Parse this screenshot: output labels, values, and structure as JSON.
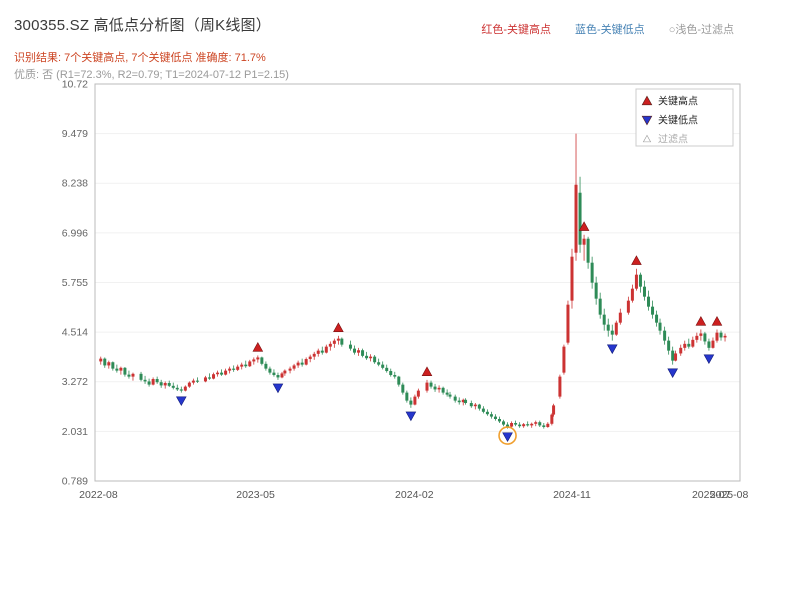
{
  "header": {
    "title": "300355.SZ 高低点分析图（周K线图）",
    "legend_high": "红色-关键高点",
    "legend_low": "蓝色-关键低点",
    "legend_filter": "○浅色-过滤点",
    "result_line": "识别结果: 7个关键高点, 7个关键低点   准确度: 71.7%",
    "quality_line": "优质: 否 (R1=72.3%, R2=0.79; T1=2024-07-12 P1=2.15)"
  },
  "colors": {
    "title": "#3a3a3a",
    "legend_high_text": "#cc3333",
    "legend_low_text": "#4682b4",
    "legend_filter_text": "#999999",
    "result_text": "#cc4422",
    "quality_text": "#9a9a9a",
    "up_candle": "#cc3333",
    "down_candle": "#2e8b57",
    "key_high_marker": "#cc2020",
    "key_low_marker": "#2636cc",
    "highlight_circle": "#f0a030",
    "axis_text": "#666666",
    "plot_border": "#bbbbbb"
  },
  "chart_data": {
    "type": "candlestick",
    "title": "300355.SZ 高低点分析图（周K线图）",
    "ylim": [
      0.789,
      10.72
    ],
    "yticks": [
      "10.72",
      "9.479",
      "8.238",
      "6.996",
      "5.755",
      "4.514",
      "3.272",
      "2.031",
      "0.789"
    ],
    "xlim": [
      "2022-07-26",
      "2025-08-20"
    ],
    "xticks": [
      {
        "date": "2022-08-01",
        "label": "2022-08"
      },
      {
        "date": "2023-05-01",
        "label": "2023-05"
      },
      {
        "date": "2024-02-01",
        "label": "2024-02"
      },
      {
        "date": "2024-11-01",
        "label": "2024-11"
      },
      {
        "date": "2025-07-01",
        "label": "2025-07"
      },
      {
        "date": "2025-08-01",
        "label": "2025-08"
      }
    ],
    "legend": [
      {
        "label": "关键高点",
        "shape": "triangle-up",
        "color": "#cc2020",
        "muted": false
      },
      {
        "label": "关键低点",
        "shape": "triangle-down",
        "color": "#2636cc",
        "muted": false
      },
      {
        "label": "过滤点",
        "shape": "triangle-up",
        "color": "#ffffff",
        "muted": true
      }
    ],
    "candles": [
      [
        "2022-08-05",
        3.78,
        3.9,
        3.7,
        3.85
      ],
      [
        "2022-08-12",
        3.85,
        3.88,
        3.62,
        3.68
      ],
      [
        "2022-08-19",
        3.68,
        3.8,
        3.6,
        3.76
      ],
      [
        "2022-08-26",
        3.76,
        3.78,
        3.55,
        3.6
      ],
      [
        "2022-09-02",
        3.6,
        3.7,
        3.5,
        3.55
      ],
      [
        "2022-09-09",
        3.55,
        3.65,
        3.45,
        3.62
      ],
      [
        "2022-09-16",
        3.62,
        3.64,
        3.4,
        3.45
      ],
      [
        "2022-09-23",
        3.45,
        3.55,
        3.35,
        3.4
      ],
      [
        "2022-09-30",
        3.4,
        3.5,
        3.3,
        3.47
      ],
      [
        "2022-10-14",
        3.47,
        3.52,
        3.28,
        3.32
      ],
      [
        "2022-10-21",
        3.32,
        3.42,
        3.22,
        3.28
      ],
      [
        "2022-10-28",
        3.28,
        3.35,
        3.15,
        3.2
      ],
      [
        "2022-11-04",
        3.2,
        3.38,
        3.18,
        3.34
      ],
      [
        "2022-11-11",
        3.34,
        3.4,
        3.22,
        3.26
      ],
      [
        "2022-11-18",
        3.26,
        3.32,
        3.12,
        3.18
      ],
      [
        "2022-11-25",
        3.18,
        3.28,
        3.1,
        3.24
      ],
      [
        "2022-12-02",
        3.24,
        3.3,
        3.14,
        3.17
      ],
      [
        "2022-12-09",
        3.17,
        3.25,
        3.08,
        3.12
      ],
      [
        "2022-12-16",
        3.12,
        3.2,
        3.04,
        3.08
      ],
      [
        "2022-12-23",
        3.08,
        3.15,
        3.0,
        3.05
      ],
      [
        "2022-12-30",
        3.05,
        3.18,
        3.03,
        3.15
      ],
      [
        "2023-01-06",
        3.15,
        3.28,
        3.12,
        3.25
      ],
      [
        "2023-01-13",
        3.25,
        3.35,
        3.2,
        3.3
      ],
      [
        "2023-01-20",
        3.3,
        3.38,
        3.24,
        3.28
      ],
      [
        "2023-02-03",
        3.28,
        3.42,
        3.26,
        3.38
      ],
      [
        "2023-02-10",
        3.38,
        3.48,
        3.32,
        3.35
      ],
      [
        "2023-02-17",
        3.35,
        3.5,
        3.33,
        3.46
      ],
      [
        "2023-02-24",
        3.46,
        3.55,
        3.4,
        3.5
      ],
      [
        "2023-03-03",
        3.5,
        3.58,
        3.42,
        3.45
      ],
      [
        "2023-03-10",
        3.45,
        3.6,
        3.43,
        3.55
      ],
      [
        "2023-03-17",
        3.55,
        3.65,
        3.48,
        3.6
      ],
      [
        "2023-03-24",
        3.6,
        3.68,
        3.52,
        3.57
      ],
      [
        "2023-03-31",
        3.57,
        3.7,
        3.54,
        3.65
      ],
      [
        "2023-04-07",
        3.65,
        3.75,
        3.58,
        3.7
      ],
      [
        "2023-04-14",
        3.7,
        3.8,
        3.62,
        3.66
      ],
      [
        "2023-04-21",
        3.66,
        3.82,
        3.64,
        3.78
      ],
      [
        "2023-04-28",
        3.78,
        3.88,
        3.7,
        3.83
      ],
      [
        "2023-05-05",
        3.83,
        3.93,
        3.75,
        3.88
      ],
      [
        "2023-05-12",
        3.88,
        3.9,
        3.68,
        3.72
      ],
      [
        "2023-05-19",
        3.72,
        3.78,
        3.55,
        3.6
      ],
      [
        "2023-05-26",
        3.6,
        3.65,
        3.45,
        3.5
      ],
      [
        "2023-06-02",
        3.5,
        3.58,
        3.4,
        3.44
      ],
      [
        "2023-06-09",
        3.44,
        3.5,
        3.32,
        3.38
      ],
      [
        "2023-06-16",
        3.38,
        3.52,
        3.36,
        3.48
      ],
      [
        "2023-06-21",
        3.48,
        3.58,
        3.42,
        3.55
      ],
      [
        "2023-06-30",
        3.55,
        3.65,
        3.48,
        3.6
      ],
      [
        "2023-07-07",
        3.6,
        3.72,
        3.55,
        3.68
      ],
      [
        "2023-07-14",
        3.68,
        3.8,
        3.62,
        3.75
      ],
      [
        "2023-07-21",
        3.75,
        3.85,
        3.65,
        3.7
      ],
      [
        "2023-07-28",
        3.7,
        3.88,
        3.68,
        3.84
      ],
      [
        "2023-08-04",
        3.84,
        3.95,
        3.76,
        3.9
      ],
      [
        "2023-08-11",
        3.9,
        4.02,
        3.82,
        3.97
      ],
      [
        "2023-08-18",
        3.97,
        4.1,
        3.9,
        4.05
      ],
      [
        "2023-08-25",
        4.05,
        4.15,
        3.95,
        4.0
      ],
      [
        "2023-09-01",
        4.0,
        4.2,
        3.98,
        4.15
      ],
      [
        "2023-09-08",
        4.15,
        4.28,
        4.05,
        4.22
      ],
      [
        "2023-09-15",
        4.22,
        4.35,
        4.12,
        4.3
      ],
      [
        "2023-09-22",
        4.3,
        4.42,
        4.2,
        4.35
      ],
      [
        "2023-09-28",
        4.35,
        4.38,
        4.15,
        4.2
      ],
      [
        "2023-10-13",
        4.2,
        4.3,
        4.05,
        4.1
      ],
      [
        "2023-10-20",
        4.1,
        4.18,
        3.95,
        4.0
      ],
      [
        "2023-10-27",
        4.0,
        4.12,
        3.92,
        4.06
      ],
      [
        "2023-11-03",
        4.06,
        4.1,
        3.88,
        3.92
      ],
      [
        "2023-11-10",
        3.92,
        4.02,
        3.82,
        3.86
      ],
      [
        "2023-11-17",
        3.86,
        3.96,
        3.78,
        3.9
      ],
      [
        "2023-11-24",
        3.9,
        3.94,
        3.72,
        3.76
      ],
      [
        "2023-12-01",
        3.76,
        3.85,
        3.66,
        3.7
      ],
      [
        "2023-12-08",
        3.7,
        3.78,
        3.58,
        3.62
      ],
      [
        "2023-12-15",
        3.62,
        3.7,
        3.5,
        3.54
      ],
      [
        "2023-12-22",
        3.54,
        3.6,
        3.4,
        3.44
      ],
      [
        "2023-12-29",
        3.44,
        3.52,
        3.35,
        3.4
      ],
      [
        "2024-01-05",
        3.4,
        3.42,
        3.15,
        3.2
      ],
      [
        "2024-01-12",
        3.2,
        3.25,
        2.95,
        3.0
      ],
      [
        "2024-01-19",
        3.0,
        3.05,
        2.75,
        2.8
      ],
      [
        "2024-01-26",
        2.8,
        2.88,
        2.62,
        2.7
      ],
      [
        "2024-02-02",
        2.7,
        2.95,
        2.68,
        2.9
      ],
      [
        "2024-02-08",
        2.9,
        3.1,
        2.85,
        3.05
      ],
      [
        "2024-02-23",
        3.05,
        3.32,
        3.0,
        3.25
      ],
      [
        "2024-03-01",
        3.25,
        3.3,
        3.1,
        3.15
      ],
      [
        "2024-03-08",
        3.15,
        3.22,
        3.02,
        3.08
      ],
      [
        "2024-03-15",
        3.08,
        3.18,
        3.0,
        3.12
      ],
      [
        "2024-03-22",
        3.12,
        3.15,
        2.95,
        3.0
      ],
      [
        "2024-03-29",
        3.0,
        3.08,
        2.9,
        2.95
      ],
      [
        "2024-04-03",
        2.95,
        3.02,
        2.85,
        2.9
      ],
      [
        "2024-04-12",
        2.9,
        2.95,
        2.75,
        2.8
      ],
      [
        "2024-04-19",
        2.8,
        2.88,
        2.7,
        2.76
      ],
      [
        "2024-04-26",
        2.76,
        2.85,
        2.68,
        2.82
      ],
      [
        "2024-04-30",
        2.82,
        2.86,
        2.7,
        2.74
      ],
      [
        "2024-05-10",
        2.74,
        2.8,
        2.62,
        2.66
      ],
      [
        "2024-05-17",
        2.66,
        2.74,
        2.58,
        2.7
      ],
      [
        "2024-05-24",
        2.7,
        2.72,
        2.55,
        2.6
      ],
      [
        "2024-05-31",
        2.6,
        2.66,
        2.48,
        2.52
      ],
      [
        "2024-06-07",
        2.52,
        2.58,
        2.42,
        2.46
      ],
      [
        "2024-06-14",
        2.46,
        2.52,
        2.35,
        2.4
      ],
      [
        "2024-06-21",
        2.4,
        2.46,
        2.3,
        2.34
      ],
      [
        "2024-06-28",
        2.34,
        2.4,
        2.24,
        2.28
      ],
      [
        "2024-07-05",
        2.28,
        2.32,
        2.16,
        2.2
      ],
      [
        "2024-07-12",
        2.2,
        2.26,
        2.1,
        2.15
      ],
      [
        "2024-07-19",
        2.15,
        2.28,
        2.13,
        2.24
      ],
      [
        "2024-07-26",
        2.24,
        2.3,
        2.16,
        2.2
      ],
      [
        "2024-08-02",
        2.2,
        2.26,
        2.12,
        2.16
      ],
      [
        "2024-08-09",
        2.16,
        2.24,
        2.12,
        2.21
      ],
      [
        "2024-08-16",
        2.21,
        2.28,
        2.15,
        2.18
      ],
      [
        "2024-08-23",
        2.18,
        2.25,
        2.12,
        2.22
      ],
      [
        "2024-08-30",
        2.22,
        2.3,
        2.16,
        2.26
      ],
      [
        "2024-09-06",
        2.26,
        2.3,
        2.14,
        2.18
      ],
      [
        "2024-09-13",
        2.18,
        2.24,
        2.1,
        2.14
      ],
      [
        "2024-09-20",
        2.14,
        2.26,
        2.12,
        2.22
      ],
      [
        "2024-09-27",
        2.22,
        2.48,
        2.18,
        2.45
      ],
      [
        "2024-09-30",
        2.45,
        2.72,
        2.4,
        2.68
      ],
      [
        "2024-10-11",
        2.9,
        3.45,
        2.85,
        3.4
      ],
      [
        "2024-10-18",
        3.5,
        4.2,
        3.45,
        4.15
      ],
      [
        "2024-10-25",
        4.25,
        5.3,
        4.2,
        5.2
      ],
      [
        "2024-11-01",
        5.3,
        6.6,
        5.1,
        6.4
      ],
      [
        "2024-11-08",
        6.5,
        9.48,
        6.3,
        8.2
      ],
      [
        "2024-11-15",
        8.0,
        8.4,
        6.5,
        6.7
      ],
      [
        "2024-11-22",
        6.7,
        6.95,
        6.3,
        6.85
      ],
      [
        "2024-11-29",
        6.85,
        6.9,
        6.1,
        6.25
      ],
      [
        "2024-12-06",
        6.25,
        6.4,
        5.6,
        5.75
      ],
      [
        "2024-12-13",
        5.75,
        5.9,
        5.2,
        5.35
      ],
      [
        "2024-12-20",
        5.35,
        5.5,
        4.85,
        4.95
      ],
      [
        "2024-12-27",
        4.95,
        5.1,
        4.55,
        4.7
      ],
      [
        "2025-01-03",
        4.7,
        4.85,
        4.4,
        4.55
      ],
      [
        "2025-01-10",
        4.55,
        4.7,
        4.3,
        4.45
      ],
      [
        "2025-01-17",
        4.45,
        4.8,
        4.42,
        4.75
      ],
      [
        "2025-01-24",
        4.75,
        5.1,
        4.7,
        5.0
      ],
      [
        "2025-02-07",
        5.0,
        5.4,
        4.95,
        5.3
      ],
      [
        "2025-02-14",
        5.3,
        5.7,
        5.25,
        5.6
      ],
      [
        "2025-02-21",
        5.6,
        6.1,
        5.55,
        5.95
      ],
      [
        "2025-02-28",
        5.95,
        6.0,
        5.5,
        5.65
      ],
      [
        "2025-03-07",
        5.65,
        5.8,
        5.3,
        5.4
      ],
      [
        "2025-03-14",
        5.4,
        5.55,
        5.05,
        5.15
      ],
      [
        "2025-03-21",
        5.15,
        5.3,
        4.85,
        4.95
      ],
      [
        "2025-03-28",
        4.95,
        5.05,
        4.65,
        4.75
      ],
      [
        "2025-04-03",
        4.75,
        4.85,
        4.45,
        4.55
      ],
      [
        "2025-04-11",
        4.55,
        4.65,
        4.2,
        4.3
      ],
      [
        "2025-04-18",
        4.3,
        4.4,
        3.95,
        4.05
      ],
      [
        "2025-04-25",
        4.05,
        4.15,
        3.7,
        3.8
      ],
      [
        "2025-04-30",
        3.8,
        4.05,
        3.78,
        3.98
      ],
      [
        "2025-05-09",
        3.98,
        4.2,
        3.92,
        4.12
      ],
      [
        "2025-05-16",
        4.12,
        4.3,
        4.05,
        4.22
      ],
      [
        "2025-05-23",
        4.22,
        4.35,
        4.1,
        4.15
      ],
      [
        "2025-05-30",
        4.15,
        4.4,
        4.12,
        4.32
      ],
      [
        "2025-06-06",
        4.32,
        4.5,
        4.25,
        4.42
      ],
      [
        "2025-06-13",
        4.42,
        4.58,
        4.3,
        4.48
      ],
      [
        "2025-06-20",
        4.48,
        4.52,
        4.2,
        4.28
      ],
      [
        "2025-06-27",
        4.28,
        4.35,
        4.05,
        4.12
      ],
      [
        "2025-07-04",
        4.12,
        4.38,
        4.1,
        4.3
      ],
      [
        "2025-07-11",
        4.3,
        4.58,
        4.25,
        4.5
      ],
      [
        "2025-07-18",
        4.5,
        4.55,
        4.3,
        4.38
      ],
      [
        "2025-07-25",
        4.38,
        4.48,
        4.28,
        4.42
      ]
    ],
    "key_highs": [
      {
        "date": "2023-05-05",
        "price": 3.93
      },
      {
        "date": "2023-09-22",
        "price": 4.42
      },
      {
        "date": "2024-02-23",
        "price": 3.32
      },
      {
        "date": "2024-11-22",
        "price": 6.95
      },
      {
        "date": "2025-02-21",
        "price": 6.1
      },
      {
        "date": "2025-06-13",
        "price": 4.58
      },
      {
        "date": "2025-07-11",
        "price": 4.58
      }
    ],
    "key_lows": [
      {
        "date": "2022-12-23",
        "price": 3.0
      },
      {
        "date": "2023-06-09",
        "price": 3.32
      },
      {
        "date": "2024-01-26",
        "price": 2.62
      },
      {
        "date": "2024-07-12",
        "price": 2.1
      },
      {
        "date": "2025-01-10",
        "price": 4.3
      },
      {
        "date": "2025-04-25",
        "price": 3.7
      },
      {
        "date": "2025-06-27",
        "price": 4.05
      }
    ],
    "highlight": {
      "date": "2024-07-12",
      "price": 2.1
    }
  }
}
